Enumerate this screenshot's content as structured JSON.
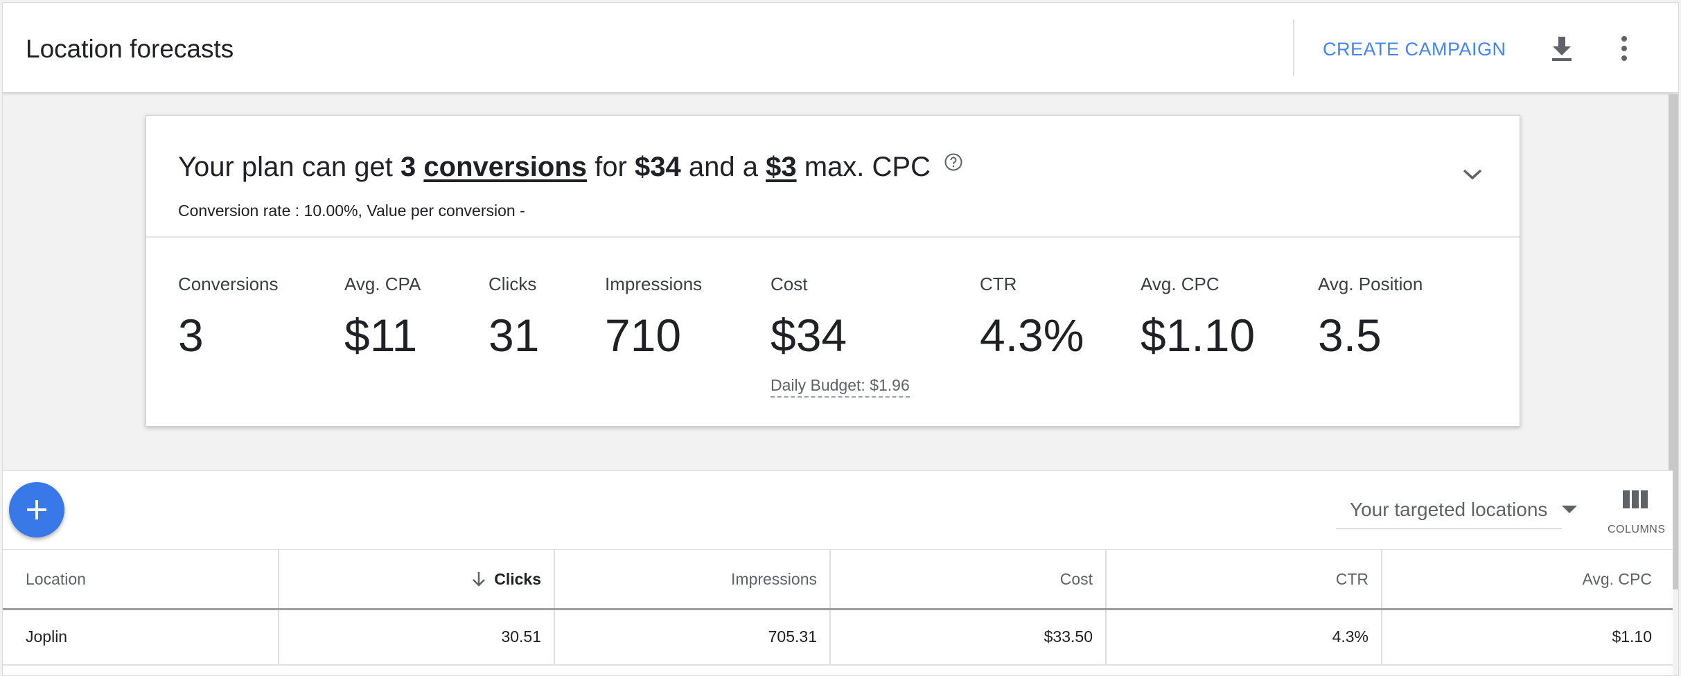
{
  "header": {
    "title": "Location forecasts",
    "create_campaign": "CREATE CAMPAIGN",
    "download_icon": "download-icon",
    "more_icon": "more-vert-icon"
  },
  "summary": {
    "plan_prefix": "Your plan can get",
    "conversions_count": "3",
    "conversions_word": "conversions",
    "for_word": "for",
    "cost": "$34",
    "and_a": "and a",
    "max_cpc": "$3",
    "max_cpc_suffix": "max. CPC",
    "conversion_rate_text": "Conversion rate : 10.00%, Value per conversion -",
    "metrics": [
      {
        "label": "Conversions",
        "value": "3"
      },
      {
        "label": "Avg. CPA",
        "value": "$11"
      },
      {
        "label": "Clicks",
        "value": "31"
      },
      {
        "label": "Impressions",
        "value": "710"
      },
      {
        "label": "Cost",
        "value": "$34"
      },
      {
        "label": "CTR",
        "value": "4.3%"
      },
      {
        "label": "Avg. CPC",
        "value": "$1.10"
      },
      {
        "label": "Avg. Position",
        "value": "3.5"
      }
    ],
    "daily_budget": "Daily Budget: $1.96"
  },
  "toolbar": {
    "location_filter": "Your targeted locations",
    "columns_label": "COLUMNS"
  },
  "table": {
    "headers": [
      "Location",
      "Clicks",
      "Impressions",
      "Cost",
      "CTR",
      "Avg. CPC"
    ],
    "sorted_column": "Clicks",
    "rows": [
      [
        "Joplin",
        "30.51",
        "705.31",
        "$33.50",
        "4.3%",
        "$1.10"
      ]
    ]
  },
  "colors": {
    "accent": "#4285f4",
    "fab": "#3978e8"
  }
}
